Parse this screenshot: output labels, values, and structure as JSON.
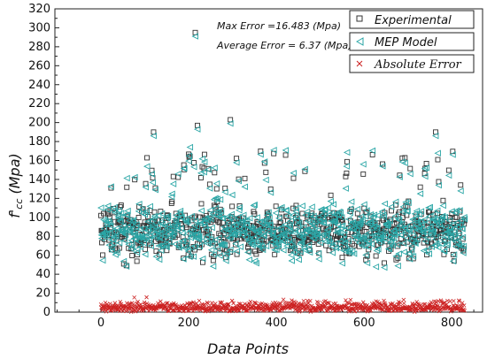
{
  "chart_data": {
    "type": "scatter",
    "xlabel": "Data Points",
    "ylabel_main": "f'",
    "ylabel_sub": "cc",
    "ylabel_unit": " (Mpa)",
    "xlim": [
      -105,
      870
    ],
    "ylim": [
      0,
      320
    ],
    "xticks": [
      0,
      200,
      400,
      600,
      800
    ],
    "yticks": [
      0,
      20,
      40,
      60,
      80,
      100,
      120,
      140,
      160,
      180,
      200,
      220,
      240,
      260,
      280,
      300,
      320
    ],
    "n_points": 830,
    "annotations": {
      "max_error": "Max Error =16.483 (Mpa)",
      "average_error": "Average Error = 6.37 (Mpa)"
    },
    "legend_position": "top-right",
    "series": [
      {
        "name": "Experimental",
        "marker": "square",
        "color": "#333333",
        "typical_range": [
          35,
          170
        ],
        "center": 85,
        "outliers": [
          [
            215,
            295
          ],
          [
            220,
            197
          ],
          [
            295,
            203
          ],
          [
            120,
            190
          ],
          [
            763,
            190
          ]
        ]
      },
      {
        "name": "MEP Model",
        "marker": "triangle",
        "color": "#2aa6a6",
        "typical_range": [
          40,
          165
        ],
        "center": 85
      },
      {
        "name": "Absolute Error",
        "marker": "x",
        "color": "#cc2222",
        "typical_range": [
          0,
          16.483
        ],
        "average": 6.37
      }
    ],
    "legend": [
      {
        "label": "Experimental"
      },
      {
        "label": "MEP Model"
      },
      {
        "label": "Absolute Error"
      }
    ]
  }
}
